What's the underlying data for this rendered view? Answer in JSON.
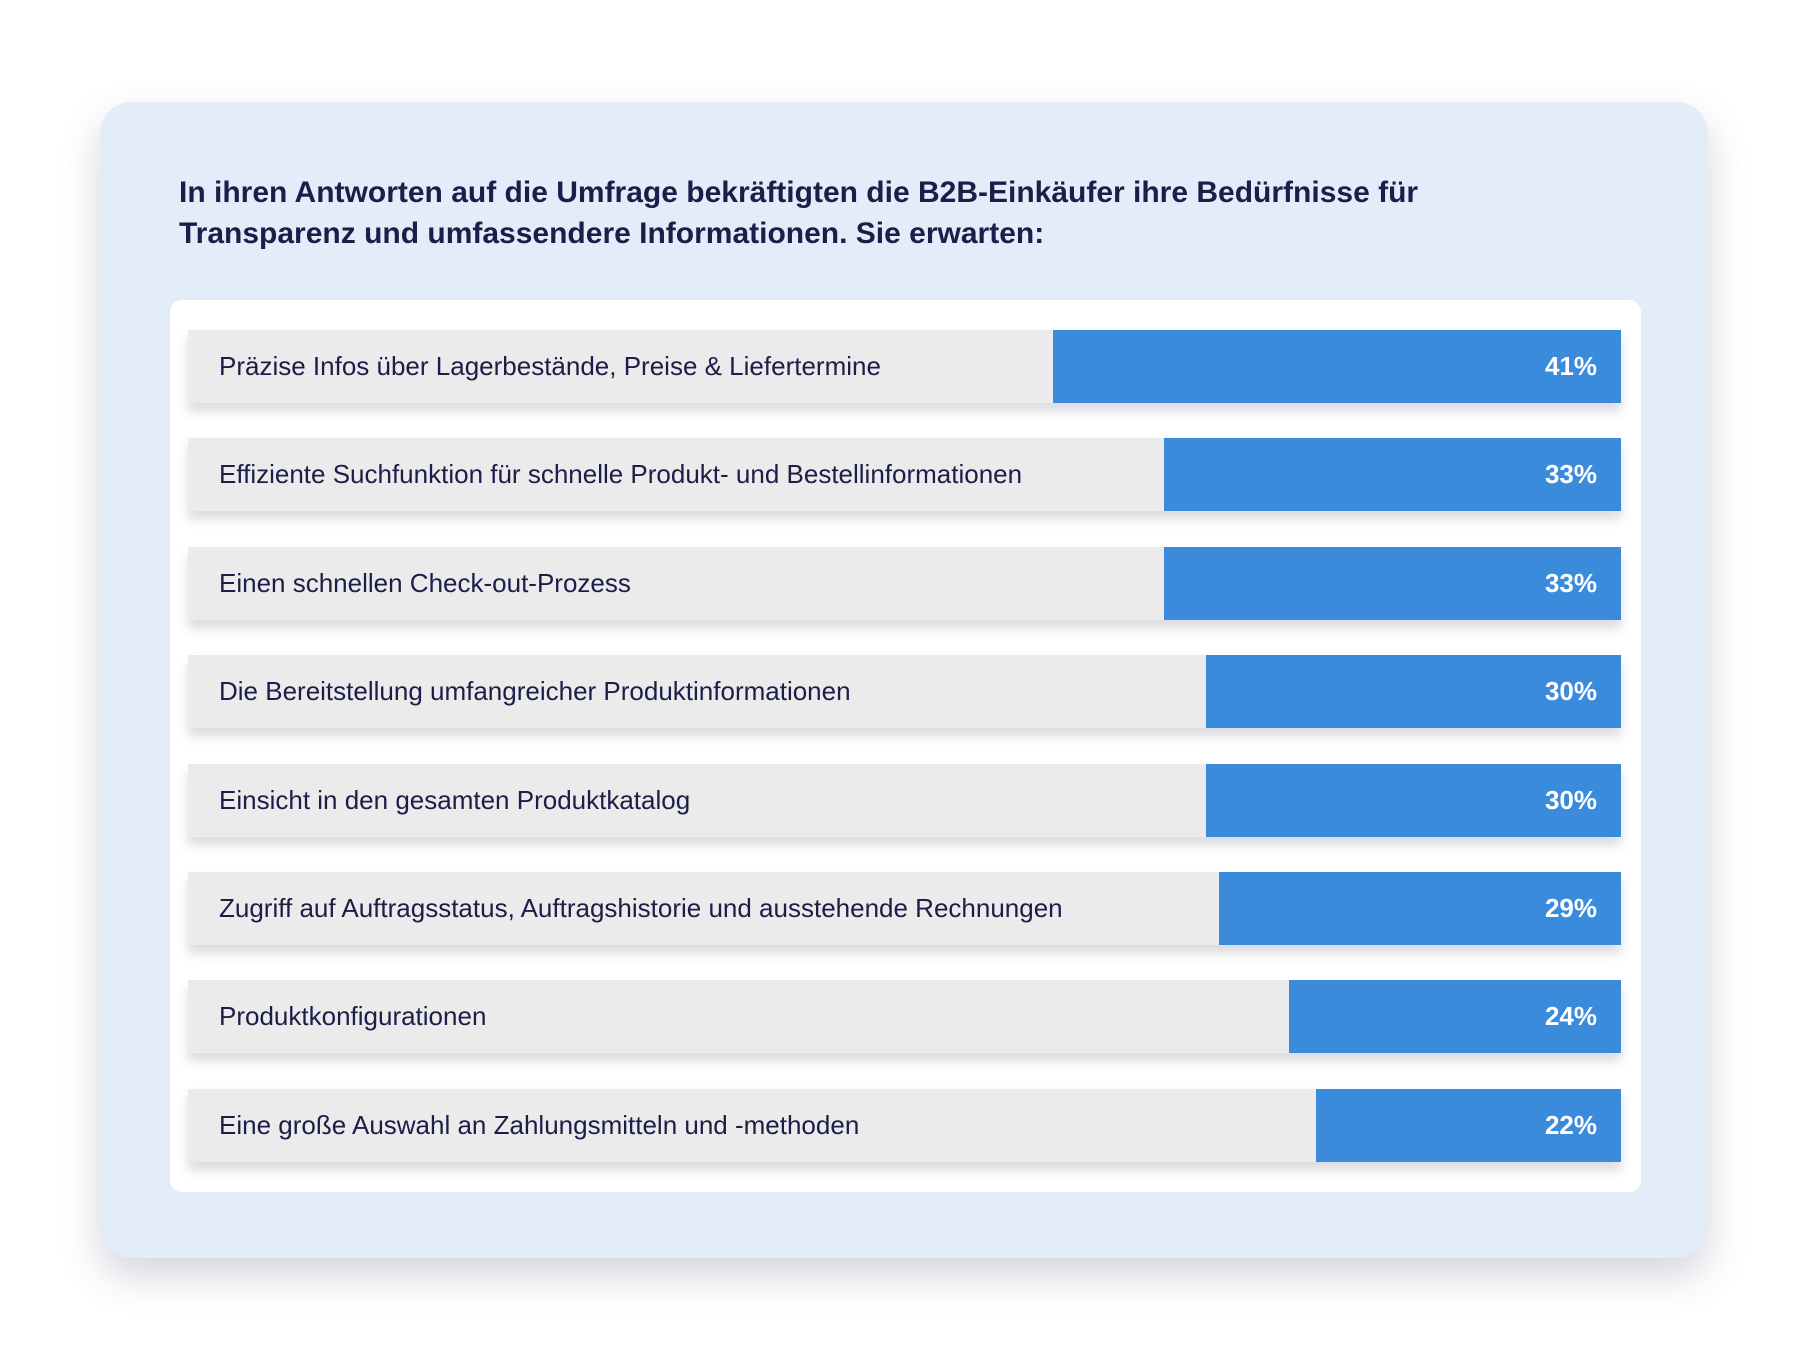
{
  "title": "In ihren Antworten auf die Umfrage bekräftigten die B2B-Einkäufer ihre Bedürfnisse für Transparenz und umfassendere Informationen. Sie erwarten:",
  "colors": {
    "card_bg": "#e2edf9",
    "bar_bg": "#ebebeb",
    "bar_fill": "#3a8bdc",
    "text": "#1c1d48"
  },
  "chart_data": {
    "type": "bar",
    "orientation": "horizontal",
    "title": "In ihren Antworten auf die Umfrage bekräftigten die B2B-Einkäufer ihre Bedürfnisse für Transparenz und umfassendere Informationen. Sie erwarten:",
    "categories": [
      "Präzise Infos über Lagerbestände, Preise & Liefertermine",
      "Effiziente Suchfunktion für schnelle Produkt- und Bestellinformationen",
      "Einen schnellen Check-out-Prozess",
      "Die Bereitstellung umfangreicher Produktinformationen",
      "Einsicht in den gesamten Produktkatalog",
      "Zugriff auf Auftragsstatus, Auftragshistorie und ausstehende Rechnungen",
      "Produktkonfigurationen",
      "Eine große Auswahl an Zahlungsmitteln und -methoden"
    ],
    "values": [
      41,
      33,
      33,
      30,
      30,
      29,
      24,
      22
    ],
    "value_labels": [
      "41%",
      "33%",
      "33%",
      "30%",
      "30%",
      "29%",
      "24%",
      "22%"
    ],
    "unit": "%",
    "grid": false
  }
}
